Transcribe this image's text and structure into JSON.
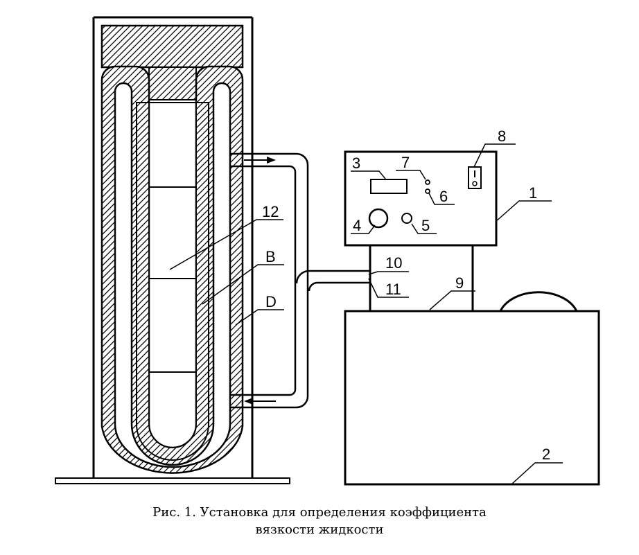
{
  "figure": {
    "labels": {
      "l1": "1",
      "l2": "2",
      "l3": "3",
      "l4": "4",
      "l5": "5",
      "l6": "6",
      "l7": "7",
      "l8": "8",
      "l9": "9",
      "l10": "10",
      "l11": "11",
      "l12": "12",
      "lB": "B",
      "lD": "D"
    },
    "caption_line1": "Рис. 1. Установка для определения коэффициента",
    "caption_line2": "вязкости жидкости"
  }
}
